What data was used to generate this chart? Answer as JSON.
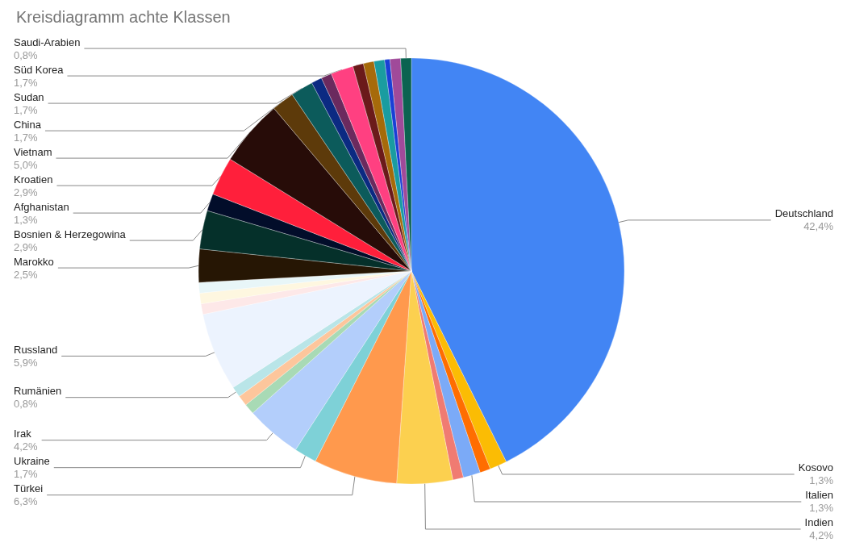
{
  "chart_data": {
    "type": "pie",
    "title": "Kreisdiagramm achte Klassen",
    "categories": [
      "Deutschland",
      "Kosovo",
      null,
      "Italien",
      null,
      "Indien",
      "Türkei",
      "Ukraine",
      "Irak",
      null,
      null,
      "Rumänien",
      "Russland",
      null,
      null,
      null,
      "Marokko",
      "Bosnien & Herzegowina",
      "Afghanistan",
      "Kroatien",
      "Vietnam",
      "China",
      "Sudan",
      null,
      null,
      "Süd Korea",
      null,
      null,
      null,
      null,
      null,
      "Saudi-Arabien"
    ],
    "values": [
      42.4,
      1.3,
      0.8,
      1.3,
      0.8,
      4.2,
      6.3,
      1.7,
      4.2,
      0.8,
      0.8,
      0.8,
      5.9,
      0.8,
      0.8,
      0.8,
      2.5,
      2.9,
      1.3,
      2.9,
      5.0,
      1.7,
      1.7,
      0.8,
      0.8,
      1.7,
      0.8,
      0.8,
      0.8,
      0.4,
      0.8,
      0.8
    ],
    "value_labels": [
      "42,4%",
      "1,3%",
      null,
      "1,3%",
      null,
      "4,2%",
      "6,3%",
      "1,7%",
      "4,2%",
      null,
      null,
      "0,8%",
      "5,9%",
      null,
      null,
      null,
      "2,5%",
      "2,9%",
      "1,3%",
      "2,9%",
      "5,0%",
      "1,7%",
      "1,7%",
      null,
      null,
      "1,7%",
      null,
      null,
      null,
      null,
      null,
      "0,8%"
    ],
    "colors": [
      "#4285f4",
      "#fbbc04",
      "#ff6d01",
      "#7baaf7",
      "#f07b72",
      "#fcd04f",
      "#ff994d",
      "#7ed1d7",
      "#b3cefb",
      "#a8dab5",
      "#fdc69c",
      "#b9e5e8",
      "#ecf3fe",
      "#fde8e8",
      "#fef7e0",
      "#e8f6f8",
      "#261604",
      "#05302a",
      "#020d2a",
      "#ff1f3b",
      "#270c08",
      "#5d3a0a",
      "#0c5b5b",
      "#0b2a82",
      "#6b2a5e",
      "#ff4081",
      "#6b1a1a",
      "#a66a0a",
      "#1a9ca0",
      "#1a3fd6",
      "#a04a9a",
      "#0b6350"
    ],
    "legend": false
  }
}
